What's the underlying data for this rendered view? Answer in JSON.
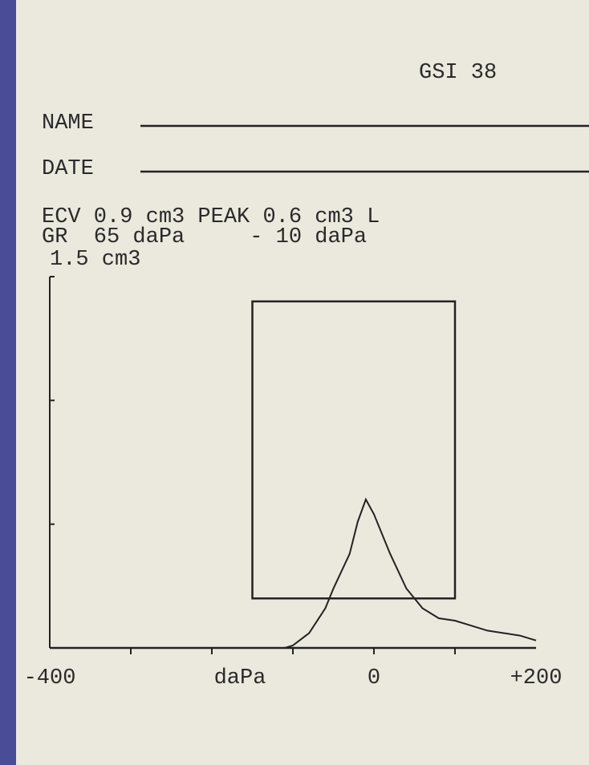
{
  "chart_data": {
    "type": "line",
    "header": {
      "device": "GSI 38",
      "name_label": "NAME",
      "date_label": "DATE",
      "line1": "ECV 0.9 cm3 PEAK 0.6 cm3 L",
      "line2": "GR  65 daPa     - 10 daPa"
    },
    "xlabel": "daPa",
    "x": [
      -110,
      -100,
      -80,
      -60,
      -50,
      -30,
      -20,
      -10,
      0,
      20,
      40,
      60,
      80,
      100,
      120,
      140,
      160,
      180,
      200
    ],
    "values": [
      0,
      0.01,
      0.06,
      0.16,
      0.24,
      0.38,
      0.51,
      0.6,
      0.54,
      0.38,
      0.24,
      0.16,
      0.12,
      0.11,
      0.09,
      0.07,
      0.06,
      0.05,
      0.03
    ],
    "color": "#222222",
    "normal_box": {
      "xlim": [
        -150,
        100
      ],
      "ylim": [
        0.2,
        1.4
      ]
    },
    "xlim": [
      -400,
      200
    ],
    "xticks": [
      -400,
      0,
      {
        "value": 200,
        "label": "+200"
      }
    ],
    "x_tick_marks": [
      -300,
      -200,
      -100,
      0,
      100
    ],
    "ylim": [
      0,
      1.5
    ],
    "yticks": [
      {
        "value": 1.5,
        "label": "1.5 cm3"
      }
    ],
    "y_tick_marks": [
      0.5,
      1,
      1.5
    ]
  }
}
